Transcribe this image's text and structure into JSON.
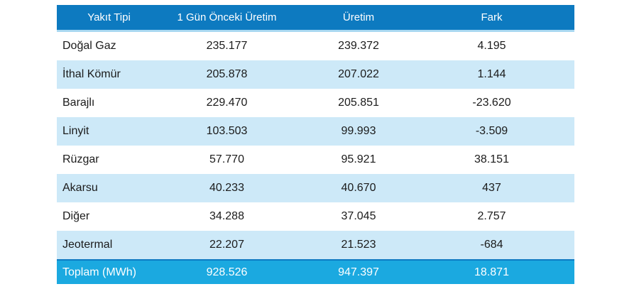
{
  "table": {
    "columns": {
      "fuel_type": "Yakıt Tipi",
      "prev_day_production": "1 Gün Önceki Üretim",
      "production": "Üretim",
      "diff": "Fark"
    },
    "rows": [
      {
        "fuel": "Doğal Gaz",
        "prev": "235.177",
        "production": "239.372",
        "diff": "4.195"
      },
      {
        "fuel": "İthal Kömür",
        "prev": "205.878",
        "production": "207.022",
        "diff": "1.144"
      },
      {
        "fuel": "Barajlı",
        "prev": "229.470",
        "production": "205.851",
        "diff": "-23.620"
      },
      {
        "fuel": "Linyit",
        "prev": "103.503",
        "production": "99.993",
        "diff": "-3.509"
      },
      {
        "fuel": "Rüzgar",
        "prev": "57.770",
        "production": "95.921",
        "diff": "38.151"
      },
      {
        "fuel": "Akarsu",
        "prev": "40.233",
        "production": "40.670",
        "diff": "437"
      },
      {
        "fuel": "Diğer",
        "prev": "34.288",
        "production": "37.045",
        "diff": "2.757"
      },
      {
        "fuel": "Jeotermal",
        "prev": "22.207",
        "production": "21.523",
        "diff": "-684"
      }
    ],
    "total": {
      "label": "Toplam (MWh)",
      "prev": "928.526",
      "production": "947.397",
      "diff": "18.871"
    }
  },
  "colors": {
    "header_bg": "#0d7ac0",
    "header_text": "#ffffff",
    "header_underline": "#a9d8f1",
    "stripe_bg": "#cde9f8",
    "total_bg": "#1ba9e0",
    "total_border_top": "#0e7ac2",
    "body_text": "#1b1b1b"
  }
}
